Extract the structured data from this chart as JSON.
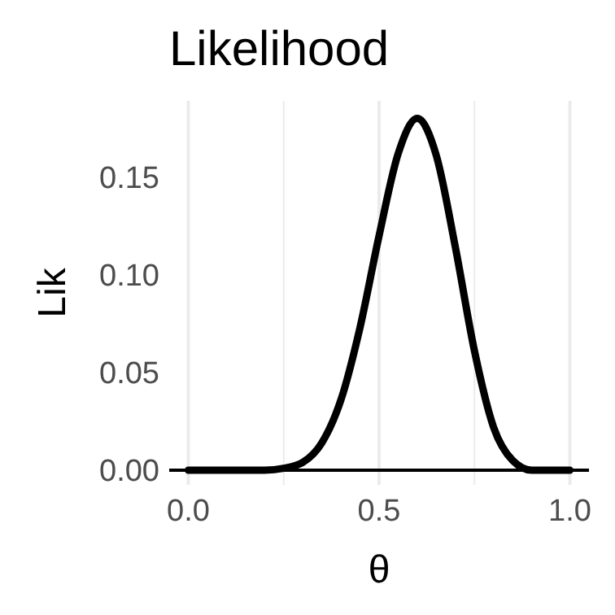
{
  "chart_data": {
    "type": "line",
    "title": "Likelihood",
    "xlabel": "θ",
    "ylabel": "Lik",
    "x": [
      0,
      0.05,
      0.1,
      0.15,
      0.2,
      0.25,
      0.3,
      0.35,
      0.4,
      0.45,
      0.5,
      0.55,
      0.6,
      0.65,
      0.7,
      0.75,
      0.8,
      0.85,
      0.9,
      0.95,
      1
    ],
    "series": [
      {
        "color": "#000000",
        "values": [
          0,
          0,
          0,
          0,
          0,
          0.001,
          0.004,
          0.014,
          0.036,
          0.073,
          0.12,
          0.162,
          0.18,
          0.161,
          0.114,
          0.061,
          0.022,
          0.005,
          0,
          0,
          0
        ]
      }
    ],
    "xlim": [
      -0.05,
      1.05
    ],
    "ylim": [
      0,
      0.189
    ],
    "xticks": [
      {
        "value": 0,
        "label": "0.0"
      },
      {
        "value": 0.25,
        "label": null
      },
      {
        "value": 0.5,
        "label": "0.5"
      },
      {
        "value": 0.75,
        "label": null
      },
      {
        "value": 1,
        "label": "1.0"
      }
    ],
    "yticks": [
      {
        "value": 0,
        "label": "0.00"
      },
      {
        "value": 0.05,
        "label": "0.05"
      },
      {
        "value": 0.1,
        "label": "0.10"
      },
      {
        "value": 0.15,
        "label": "0.15"
      }
    ],
    "grid": "x",
    "marker": "none",
    "line_style": "solid"
  }
}
